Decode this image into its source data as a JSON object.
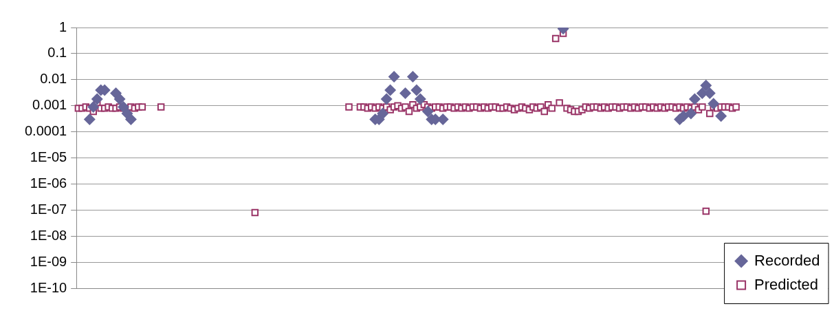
{
  "chart_data": {
    "type": "scatter",
    "categories": [
      null,
      null,
      null,
      null,
      null,
      null,
      null,
      null,
      null,
      null,
      null,
      null,
      null,
      null,
      null,
      null,
      null,
      null,
      null,
      null,
      null,
      null,
      null,
      null,
      null,
      null,
      null,
      null,
      null,
      null,
      null,
      null,
      null,
      null,
      null,
      null,
      null,
      null,
      null,
      null,
      null,
      null,
      null,
      null,
      null,
      null,
      null,
      null,
      null,
      null,
      null,
      null,
      null,
      null,
      null,
      null,
      null,
      null,
      null,
      null,
      null,
      null,
      null,
      null,
      null,
      null,
      null,
      null,
      null,
      null,
      null,
      null,
      null,
      null,
      null,
      null,
      null,
      null,
      null,
      null,
      null,
      null,
      null,
      null,
      null,
      null,
      null,
      null,
      null,
      null,
      null,
      null,
      null,
      null,
      null,
      null,
      null,
      null,
      null,
      null,
      null,
      null,
      null,
      null,
      null,
      null,
      null,
      null,
      null,
      null,
      null,
      null,
      null,
      null,
      null,
      null,
      null,
      null,
      null,
      null,
      null,
      null,
      null,
      null,
      null,
      null,
      null,
      null,
      null,
      null,
      null,
      null,
      null,
      null,
      null,
      null,
      null,
      null,
      null,
      null,
      null,
      null,
      null,
      null,
      null,
      null,
      null,
      null,
      null,
      null,
      null,
      null,
      null,
      null,
      null,
      null,
      null,
      null,
      null,
      null,
      null,
      null,
      null,
      null,
      null,
      null,
      null,
      null,
      null,
      null,
      null,
      null,
      null,
      null,
      null,
      null,
      null,
      null,
      null,
      null,
      null,
      null,
      null,
      null,
      null,
      null,
      null,
      null,
      null,
      null,
      null,
      null,
      null,
      null,
      null,
      null,
      null,
      null,
      null,
      null
    ],
    "series": [
      {
        "name": "Recorded",
        "color": "#666699",
        "marker": "diamond",
        "values": [
          null,
          null,
          null,
          0.0003,
          0.0009,
          0.0018,
          0.004,
          0.004,
          null,
          null,
          0.003,
          0.0018,
          0.0009,
          0.0005,
          0.0003,
          null,
          null,
          null,
          null,
          null,
          null,
          null,
          null,
          null,
          null,
          null,
          null,
          null,
          null,
          null,
          null,
          null,
          null,
          null,
          null,
          null,
          null,
          null,
          null,
          null,
          null,
          null,
          null,
          null,
          null,
          null,
          null,
          null,
          null,
          null,
          null,
          null,
          null,
          null,
          null,
          null,
          null,
          null,
          null,
          null,
          null,
          null,
          null,
          null,
          null,
          null,
          null,
          null,
          null,
          null,
          null,
          null,
          null,
          null,
          null,
          null,
          null,
          null,
          null,
          0.0003,
          0.0003,
          0.0005,
          0.0018,
          0.004,
          0.013,
          null,
          null,
          0.003,
          null,
          0.013,
          0.004,
          0.0018,
          null,
          0.0006,
          0.0003,
          0.0003,
          null,
          0.0003,
          null,
          null,
          null,
          null,
          null,
          null,
          null,
          null,
          null,
          null,
          null,
          null,
          null,
          null,
          null,
          null,
          null,
          null,
          null,
          null,
          null,
          null,
          null,
          null,
          null,
          null,
          null,
          null,
          null,
          null,
          null,
          0.9,
          null,
          null,
          null,
          null,
          null,
          null,
          null,
          null,
          null,
          null,
          null,
          null,
          null,
          null,
          null,
          null,
          null,
          null,
          null,
          null,
          null,
          null,
          null,
          null,
          null,
          null,
          null,
          null,
          null,
          null,
          0.0003,
          0.0004,
          null,
          0.0005,
          0.0018,
          null,
          0.003,
          0.006,
          0.003,
          0.0012,
          null,
          0.0004,
          null,
          null,
          null,
          null,
          null,
          null,
          null,
          null,
          null,
          null,
          null,
          null,
          null,
          null,
          null,
          null,
          null,
          null,
          null,
          null,
          null,
          null,
          null,
          null,
          null,
          null,
          null,
          null
        ]
      },
      {
        "name": "Predicted",
        "color": "#993366",
        "marker": "square",
        "values": [
          0.0008,
          0.0008,
          0.0009,
          0.0008,
          0.0006,
          0.0011,
          0.0008,
          0.0008,
          0.0009,
          0.0008,
          0.0008,
          0.0009,
          0.0008,
          0.0008,
          0.0009,
          0.0008,
          0.0009,
          0.0009,
          null,
          null,
          null,
          null,
          0.0009,
          null,
          null,
          null,
          null,
          null,
          null,
          null,
          null,
          null,
          null,
          null,
          null,
          null,
          null,
          null,
          null,
          null,
          null,
          null,
          null,
          null,
          null,
          null,
          null,
          8e-08,
          null,
          null,
          null,
          null,
          null,
          null,
          null,
          null,
          null,
          null,
          null,
          null,
          null,
          null,
          null,
          null,
          null,
          null,
          null,
          null,
          null,
          null,
          null,
          null,
          0.0009,
          null,
          null,
          0.0009,
          0.0009,
          0.0008,
          0.0009,
          0.0008,
          0.0009,
          0.0008,
          0.0009,
          0.0007,
          0.0009,
          0.001,
          0.0008,
          0.0009,
          0.0006,
          0.0011,
          0.0008,
          0.0009,
          0.0011,
          0.0009,
          0.0008,
          0.0009,
          0.0009,
          0.0008,
          0.0009,
          0.0009,
          0.0008,
          0.0009,
          0.0008,
          0.0009,
          0.0008,
          0.0009,
          0.0009,
          0.0008,
          0.0009,
          0.0008,
          0.0009,
          0.0009,
          0.0008,
          0.0008,
          0.0009,
          0.0008,
          0.0007,
          0.0008,
          0.0009,
          0.0008,
          0.0007,
          0.0009,
          0.0008,
          0.0009,
          0.0006,
          0.0011,
          0.0008,
          0.38,
          0.0013,
          0.6,
          0.0008,
          0.0007,
          0.0006,
          0.0006,
          0.0007,
          0.0009,
          0.0008,
          0.0009,
          0.0009,
          0.0008,
          0.0009,
          0.0008,
          0.0009,
          0.0009,
          0.0008,
          0.0009,
          0.0009,
          0.0008,
          0.0009,
          0.0008,
          0.0009,
          0.0009,
          0.0008,
          0.0009,
          0.0008,
          0.0009,
          0.0008,
          0.0009,
          0.0009,
          0.0008,
          0.0009,
          0.0008,
          0.0009,
          0.0008,
          0.0009,
          0.0007,
          0.0009,
          9e-08,
          0.0005,
          0.0009,
          0.0008,
          0.0009,
          0.0009,
          0.0009,
          0.0008,
          0.0009,
          null,
          null,
          null,
          null,
          null,
          null,
          null,
          null,
          null,
          null,
          null,
          null,
          null,
          null,
          null,
          null,
          null,
          null,
          null,
          null,
          null,
          null,
          null,
          null
        ]
      }
    ],
    "log": "y",
    "ylim": [
      1e-10,
      1
    ],
    "yticks": [
      1,
      0.1,
      0.01,
      0.001,
      0.0001,
      {
        "value": 1e-05,
        "label": "1E-05"
      },
      {
        "value": 1e-06,
        "label": "1E-06"
      },
      {
        "value": 1e-07,
        "label": "1E-07"
      },
      {
        "value": 1e-08,
        "label": "1E-08"
      },
      {
        "value": 1e-09,
        "label": "1E-09"
      },
      {
        "value": 1e-10,
        "label": "1E-10"
      }
    ],
    "grid": "y",
    "legend": "bottom right",
    "tick_labels": "y"
  }
}
